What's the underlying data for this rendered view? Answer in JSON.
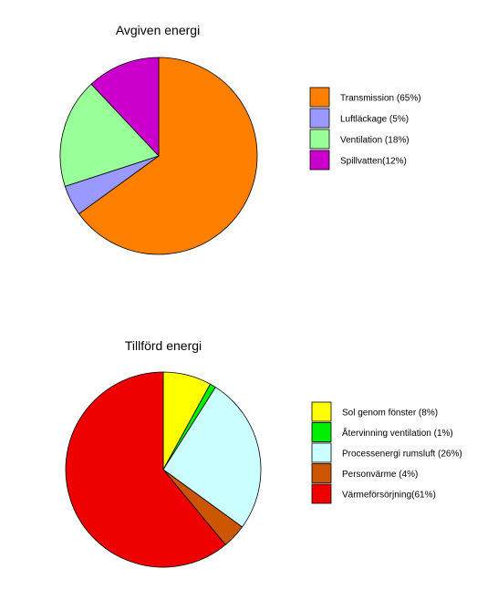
{
  "chart_data": [
    {
      "type": "pie",
      "title": "Avgiven energi",
      "legend_position": "right",
      "slices": [
        {
          "label": "Transmission (65%)",
          "value": 65,
          "color": "#FF8000"
        },
        {
          "label": "Luftläckage (5%)",
          "value": 5,
          "color": "#9999FF"
        },
        {
          "label": "Ventilation (18%)",
          "value": 18,
          "color": "#99FF99"
        },
        {
          "label": "Spillvatten(12%)",
          "value": 12,
          "color": "#CC00CC"
        }
      ]
    },
    {
      "type": "pie",
      "title": "Tillförd energi",
      "legend_position": "right",
      "slices": [
        {
          "label": "Sol genom fönster (8%)",
          "value": 8,
          "color": "#FFFF00"
        },
        {
          "label": "Återvinning ventilation (1%)",
          "value": 1,
          "color": "#00EE00"
        },
        {
          "label": "Processenergi rumsluft (26%)",
          "value": 26,
          "color": "#CCFFFF"
        },
        {
          "label": "Personvärme (4%)",
          "value": 4,
          "color": "#CC5500"
        },
        {
          "label": "Värmeförsörjning(61%)",
          "value": 61,
          "color": "#EE0000"
        }
      ]
    }
  ]
}
